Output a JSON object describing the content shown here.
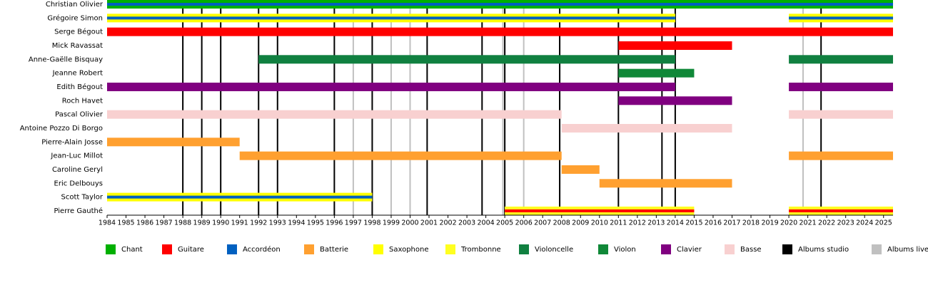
{
  "chart_data": {
    "type": "timeline",
    "xlim": [
      1984,
      2025.5
    ],
    "xticks": [
      1984,
      1985,
      1986,
      1987,
      1988,
      1989,
      1990,
      1991,
      1992,
      1993,
      1994,
      1995,
      1996,
      1997,
      1998,
      1999,
      2000,
      2001,
      2002,
      2003,
      2004,
      2005,
      2006,
      2007,
      2008,
      2009,
      2010,
      2011,
      2012,
      2013,
      2014,
      2015,
      2016,
      2017,
      2018,
      2019,
      2020,
      2021,
      2022,
      2023,
      2024,
      2025
    ],
    "instruments": [
      {
        "name": "Chant",
        "color": "#00b000"
      },
      {
        "name": "Guitare",
        "color": "#ff0000"
      },
      {
        "name": "Accordéon",
        "color": "#0060c0"
      },
      {
        "name": "Batterie",
        "color": "#ffa030"
      },
      {
        "name": "Saxophone",
        "color": "#ffff00"
      },
      {
        "name": "Trombonne",
        "color": "#ffff20"
      },
      {
        "name": "Violoncelle",
        "color": "#108040"
      },
      {
        "name": "Violon",
        "color": "#108838"
      },
      {
        "name": "Clavier",
        "color": "#800080"
      },
      {
        "name": "Basse",
        "color": "#f8d0d0"
      }
    ],
    "events": [
      {
        "name": "Albums studio",
        "color": "#000000",
        "values": [
          1988,
          1989,
          1990,
          1992,
          1993,
          1996,
          1998,
          2000.9,
          2003.8,
          2005,
          2007.9,
          2011,
          2013.3,
          2014,
          2021.7
        ]
      },
      {
        "name": "Albums live",
        "color": "#c0c0c0",
        "values": [
          1997,
          1999,
          2000,
          2004.9,
          2006,
          2020.75
        ]
      }
    ],
    "members": [
      {
        "name": "Christian Olivier",
        "roles": [
          {
            "instrument": "Chant",
            "periods": [
              [
                1984,
                2025.5
              ]
            ]
          },
          {
            "instrument": "Accordéon",
            "periods": [
              [
                1984,
                2025.5
              ]
            ]
          }
        ]
      },
      {
        "name": "Grégoire Simon",
        "roles": [
          {
            "instrument": "Saxophone",
            "periods": [
              [
                1984,
                2014
              ],
              [
                2020,
                2025.5
              ]
            ]
          },
          {
            "instrument": "Accordéon",
            "periods": [
              [
                1984,
                2014
              ],
              [
                2020,
                2025.5
              ]
            ]
          }
        ]
      },
      {
        "name": "Serge Bégout",
        "roles": [
          {
            "instrument": "Guitare",
            "periods": [
              [
                1984,
                2025.5
              ]
            ]
          }
        ]
      },
      {
        "name": "Mick Ravassat",
        "roles": [
          {
            "instrument": "Guitare",
            "periods": [
              [
                2011,
                2017
              ]
            ]
          }
        ]
      },
      {
        "name": "Anne-Gaëlle Bisquay",
        "roles": [
          {
            "instrument": "Violoncelle",
            "periods": [
              [
                1992,
                2014
              ],
              [
                2020,
                2025.5
              ]
            ]
          }
        ]
      },
      {
        "name": "Jeanne Robert",
        "roles": [
          {
            "instrument": "Violon",
            "periods": [
              [
                2011,
                2015
              ]
            ]
          }
        ]
      },
      {
        "name": "Edith Bégout",
        "roles": [
          {
            "instrument": "Clavier",
            "periods": [
              [
                1984,
                2014
              ],
              [
                2020,
                2025.5
              ]
            ]
          }
        ]
      },
      {
        "name": "Roch Havet",
        "roles": [
          {
            "instrument": "Clavier",
            "periods": [
              [
                2011,
                2017
              ]
            ]
          }
        ]
      },
      {
        "name": "Pascal Olivier",
        "roles": [
          {
            "instrument": "Basse",
            "periods": [
              [
                1984,
                2008
              ],
              [
                2020,
                2025.5
              ]
            ]
          }
        ]
      },
      {
        "name": "Antoine Pozzo Di Borgo",
        "roles": [
          {
            "instrument": "Basse",
            "periods": [
              [
                2008,
                2017
              ]
            ]
          }
        ]
      },
      {
        "name": "Pierre-Alain Josse",
        "roles": [
          {
            "instrument": "Batterie",
            "periods": [
              [
                1984,
                1991
              ]
            ]
          }
        ]
      },
      {
        "name": "Jean-Luc Millot",
        "roles": [
          {
            "instrument": "Batterie",
            "periods": [
              [
                1991,
                2008
              ],
              [
                2020,
                2025.5
              ]
            ]
          }
        ]
      },
      {
        "name": "Caroline Geryl",
        "roles": [
          {
            "instrument": "Batterie",
            "periods": [
              [
                2008,
                2010
              ]
            ]
          }
        ]
      },
      {
        "name": "Eric Delbouys",
        "roles": [
          {
            "instrument": "Batterie",
            "periods": [
              [
                2010,
                2017
              ]
            ]
          }
        ]
      },
      {
        "name": "Scott Taylor",
        "roles": [
          {
            "instrument": "Saxophone",
            "periods": [
              [
                1984,
                1998
              ]
            ]
          },
          {
            "instrument": "Accordéon",
            "periods": [
              [
                1984,
                1998
              ]
            ]
          }
        ]
      },
      {
        "name": "Pierre Gauthé",
        "roles": [
          {
            "instrument": "Trombonne",
            "periods": [
              [
                2005,
                2015
              ],
              [
                2020,
                2025.5
              ]
            ]
          },
          {
            "instrument": "Guitare",
            "periods": [
              [
                2005,
                2015
              ],
              [
                2020,
                2025.5
              ]
            ]
          }
        ]
      }
    ]
  }
}
